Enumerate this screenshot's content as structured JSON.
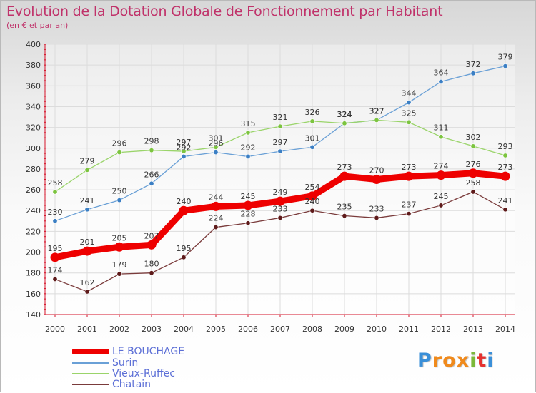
{
  "title": "Evolution de la Dotation Globale de Fonctionnement par Habitant",
  "subtitle": "(en € et par an)",
  "logo": {
    "text": "Proxiti",
    "letters": [
      "P",
      "r",
      "o",
      "x",
      "i",
      "t",
      "i"
    ],
    "colors": [
      "#3a8fd8",
      "#f08a1c",
      "#f08a1c",
      "#f08a1c",
      "#7cb83a",
      "#e5312f",
      "#3a8fd8"
    ]
  },
  "colors": {
    "title": "#c0326a",
    "legend_text": "#5c6fd6",
    "axis": "#d5152b",
    "grid": "#dcdcdc"
  },
  "chart_data": {
    "type": "line",
    "x": [
      "2000",
      "2001",
      "2002",
      "2003",
      "2004",
      "2005",
      "2006",
      "2007",
      "2008",
      "2009",
      "2010",
      "2011",
      "2012",
      "2013",
      "2014"
    ],
    "ylim": [
      140,
      400
    ],
    "yticks": [
      140,
      160,
      180,
      200,
      220,
      240,
      260,
      280,
      300,
      320,
      340,
      360,
      380,
      400
    ],
    "grid": true,
    "legend_position": "bottom-left",
    "series": [
      {
        "name": "LE BOUCHAGE",
        "color": "#ee0000",
        "highlight": true,
        "values": [
          195,
          201,
          205,
          207,
          240,
          244,
          245,
          249,
          254,
          273,
          270,
          273,
          274,
          276,
          273
        ]
      },
      {
        "name": "Surin",
        "color": "#6aa0d6",
        "marker": "#3b7fc4",
        "values": [
          230,
          241,
          250,
          266,
          292,
          296,
          292,
          297,
          301,
          324,
          327,
          344,
          364,
          372,
          379
        ]
      },
      {
        "name": "Vieux-Ruffec",
        "color": "#9ad46a",
        "marker": "#7cc43f",
        "values": [
          258,
          279,
          296,
          298,
          297,
          301,
          315,
          321,
          326,
          324,
          327,
          325,
          311,
          302,
          293
        ]
      },
      {
        "name": "Chatain",
        "color": "#7a3b3b",
        "marker": "#5e1a1a",
        "values": [
          174,
          162,
          179,
          180,
          195,
          224,
          228,
          233,
          240,
          235,
          233,
          237,
          245,
          258,
          241
        ]
      }
    ]
  }
}
